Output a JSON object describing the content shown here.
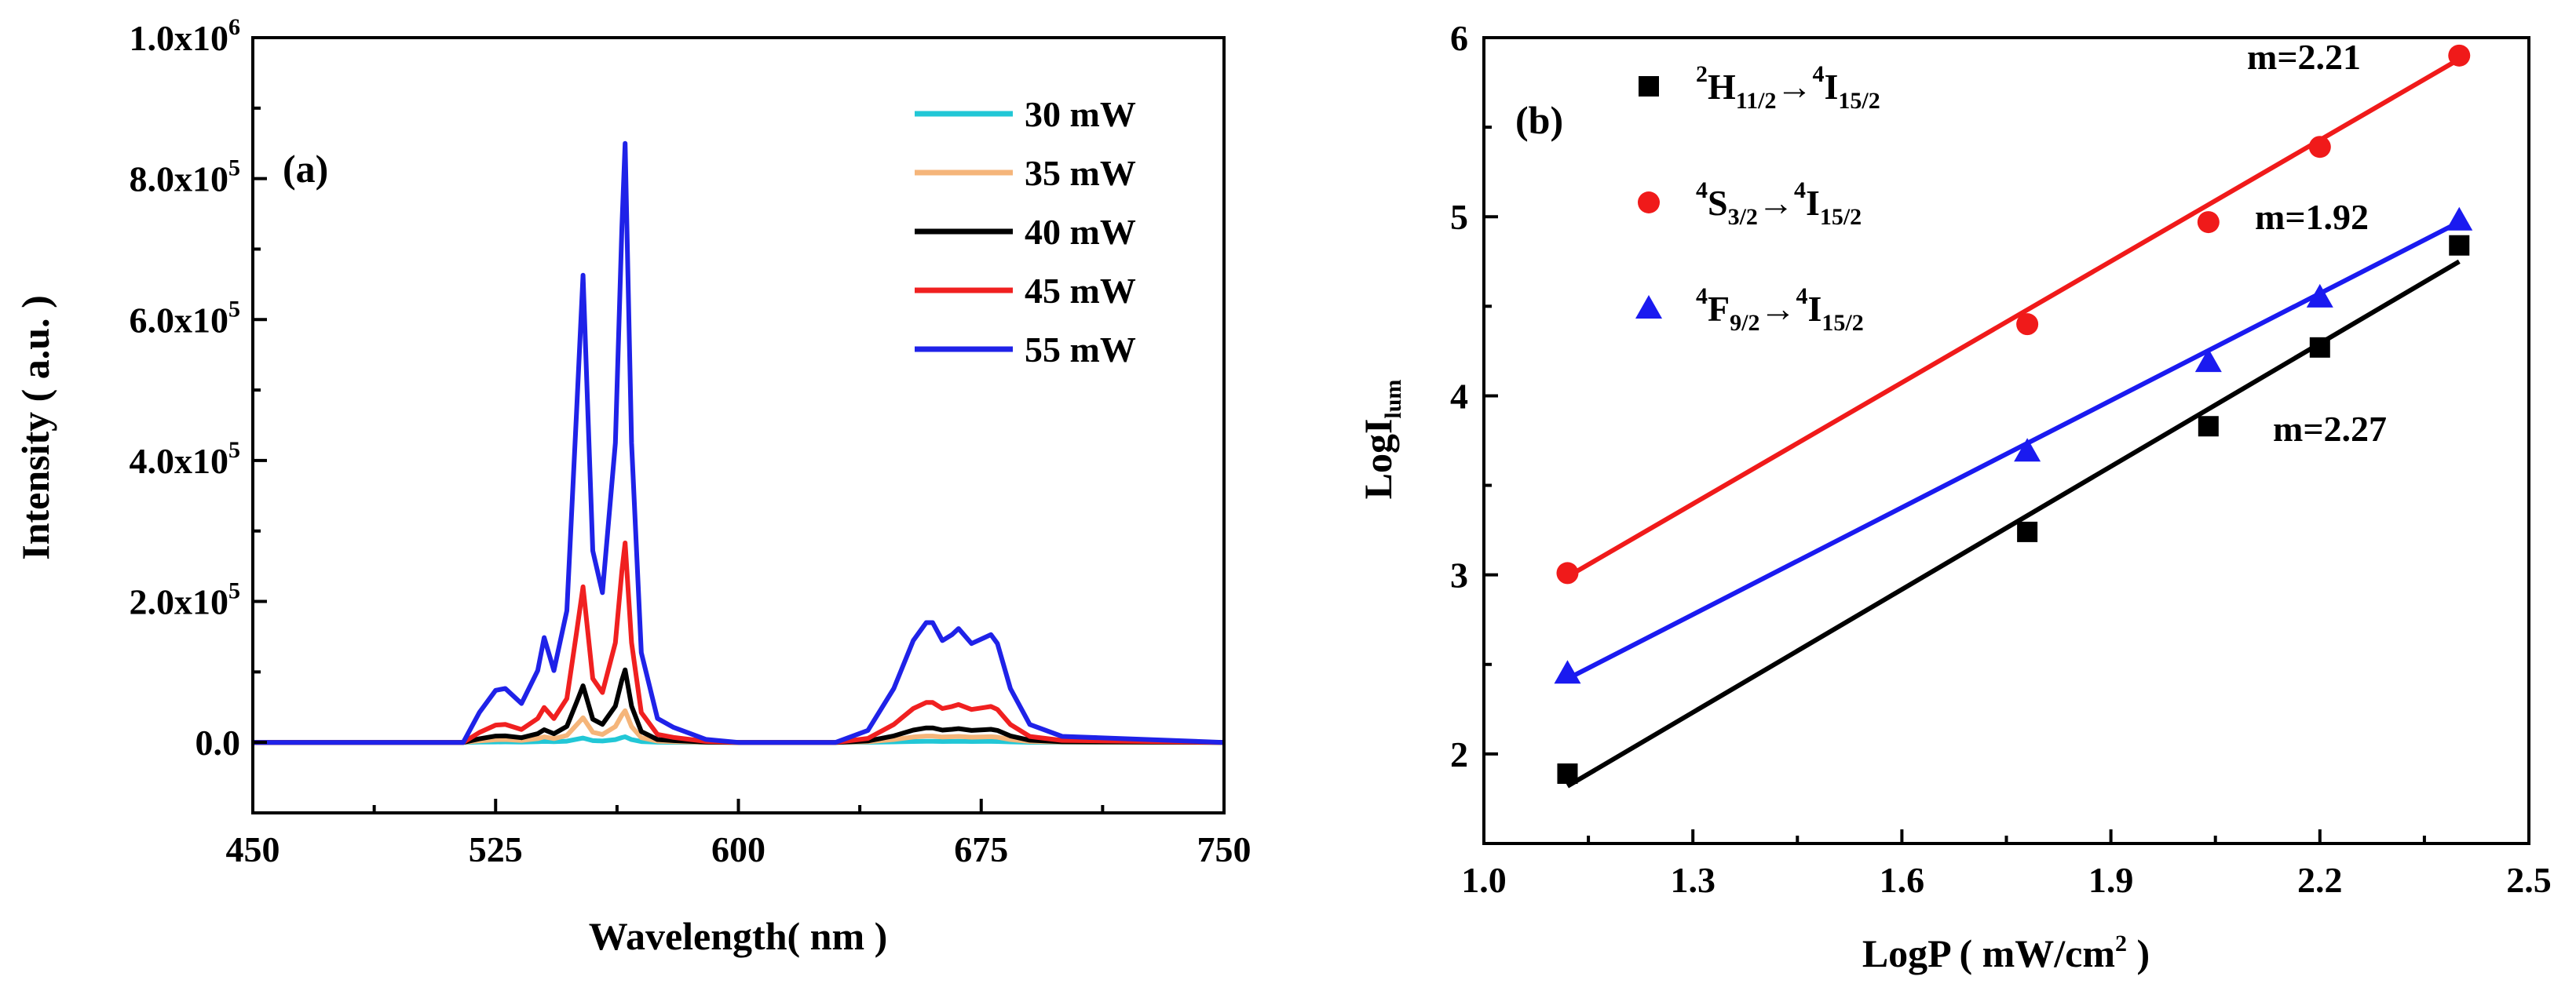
{
  "chart_data": [
    {
      "type": "line",
      "panel_label": "(a)",
      "title": "",
      "xlabel": "Wavelength( nm )",
      "ylabel": "Intensity ( a.u. )",
      "xlim": [
        450,
        750
      ],
      "ylim": [
        -100000,
        1000000
      ],
      "xticks": [
        450,
        525,
        600,
        675,
        750
      ],
      "xtick_labels": [
        "450",
        "525",
        "600",
        "675",
        "750"
      ],
      "yticks": [
        0,
        200000,
        400000,
        600000,
        800000,
        1000000
      ],
      "ytick_labels": [
        {
          "mant": "0.0",
          "exp": ""
        },
        {
          "mant": "2.0x10",
          "exp": "5"
        },
        {
          "mant": "4.0x10",
          "exp": "5"
        },
        {
          "mant": "6.0x10",
          "exp": "5"
        },
        {
          "mant": "8.0x10",
          "exp": "5"
        },
        {
          "mant": "1.0x10",
          "exp": "6"
        }
      ],
      "x": [
        450,
        515,
        520,
        525,
        528,
        533,
        538,
        540,
        543,
        547,
        550,
        552,
        555,
        558,
        562,
        564,
        565,
        567,
        570,
        575,
        580,
        585,
        590,
        600,
        630,
        640,
        648,
        654,
        658,
        660,
        663,
        666,
        668,
        672,
        676,
        678,
        680,
        684,
        690,
        700,
        750
      ],
      "shape": [
        0,
        0,
        0.05,
        0.087,
        0.09,
        0.065,
        0.12,
        0.175,
        0.12,
        0.22,
        0.55,
        0.78,
        0.32,
        0.25,
        0.5,
        0.86,
        1.0,
        0.5,
        0.15,
        0.04,
        0.025,
        0.015,
        0.005,
        0,
        0,
        0.02,
        0.09,
        0.17,
        0.2,
        0.2,
        0.17,
        0.18,
        0.19,
        0.165,
        0.175,
        0.18,
        0.165,
        0.09,
        0.03,
        0.01,
        0
      ],
      "series": [
        {
          "name": "30 mW",
          "color": "#22c7d6",
          "peak": 8000
        },
        {
          "name": "35 mW",
          "color": "#f5b57a",
          "peak": 45000
        },
        {
          "name": "40 mW",
          "color": "#000000",
          "peak": 103000
        },
        {
          "name": "45 mW",
          "color": "#f02020",
          "peak": 283000
        },
        {
          "name": "55 mW",
          "color": "#1f22e8",
          "peak": 850000
        }
      ]
    },
    {
      "type": "scatter",
      "panel_label": "(b)",
      "title": "",
      "xlabel": {
        "main": "LogP ( mW/cm",
        "sup": "2",
        "end": " )"
      },
      "ylabel": {
        "main": "LogI",
        "sub": "lum"
      },
      "xlim": [
        1.0,
        2.5
      ],
      "ylim": [
        1.5,
        6.0
      ],
      "xticks": [
        1.0,
        1.3,
        1.6,
        1.9,
        2.2,
        2.5
      ],
      "xtick_labels": [
        "1.0",
        "1.3",
        "1.6",
        "1.9",
        "2.2",
        "2.5"
      ],
      "yticks": [
        2,
        3,
        4,
        5,
        6
      ],
      "ytick_labels": [
        "2",
        "3",
        "4",
        "5",
        "6"
      ],
      "x": [
        1.12,
        1.78,
        2.04,
        2.2,
        2.4
      ],
      "series": [
        {
          "name": "2H11/2→4I15/2",
          "label": {
            "sup1": "2",
            "a": "H",
            "sub1": "11/2",
            "arrow": "→",
            "sup2": "4",
            "b": "I",
            "sub2": "15/2"
          },
          "color": "#000000",
          "marker": "square",
          "y": [
            1.89,
            3.24,
            3.83,
            4.27,
            4.84
          ],
          "fit": [
            1.82,
            4.75
          ],
          "slope": "m=2.27"
        },
        {
          "name": "4S3/2→4I15/2",
          "label": {
            "sup1": "4",
            "a": "S",
            "sub1": "3/2",
            "arrow": "→",
            "sup2": "4",
            "b": "I",
            "sub2": "15/2"
          },
          "color": "#f01a1a",
          "marker": "circle",
          "y": [
            3.01,
            4.4,
            4.97,
            5.39,
            5.9
          ],
          "fit": [
            2.99,
            5.88
          ],
          "slope": "m=2.21"
        },
        {
          "name": "4F9/2→4I15/2",
          "label": {
            "sup1": "4",
            "a": "F",
            "sub1": "9/2",
            "arrow": "→",
            "sup2": "4",
            "b": "I",
            "sub2": "15/2"
          },
          "color": "#1a1af0",
          "marker": "triangle",
          "y": [
            2.45,
            3.69,
            4.19,
            4.55,
            4.98
          ],
          "fit": [
            2.42,
            4.97
          ],
          "slope": "m=1.92"
        }
      ]
    }
  ]
}
